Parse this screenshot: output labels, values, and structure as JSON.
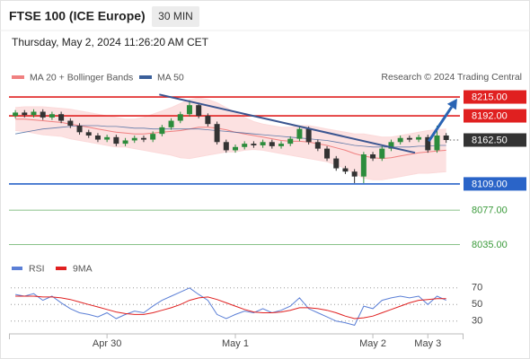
{
  "header": {
    "title": "FTSE 100 (ICE Europe)",
    "interval": "30 MIN",
    "timestamp": "Thursday, May 2, 2024 11:26:20 AM CET"
  },
  "chart_data": [
    {
      "type": "candlestick",
      "source": "Research © 2024 Trading Central",
      "xlim": [
        -0.5,
        48.5
      ],
      "xticks": [
        {
          "value": 10,
          "label": "Apr 30"
        },
        {
          "value": 24,
          "label": "May 1"
        },
        {
          "value": 39,
          "label": "May 2"
        },
        {
          "value": 45,
          "label": "May 3"
        }
      ],
      "ylim": [
        8015,
        8225
      ],
      "up_color": "#2c8c3c",
      "down_color": "#333333",
      "open": [
        8192,
        8196,
        8193,
        8197,
        8190,
        8194,
        8186,
        8180,
        8172,
        8168,
        8163,
        8166,
        8158,
        8162,
        8165,
        8163,
        8170,
        8178,
        8186,
        8194,
        8205,
        8192,
        8182,
        8160,
        8150,
        8154,
        8158,
        8156,
        8160,
        8155,
        8158,
        8164,
        8176,
        8160,
        8152,
        8140,
        8128,
        8124,
        8118,
        8145,
        8140,
        8152,
        8160,
        8165,
        8163,
        8166,
        8150,
        8168
      ],
      "high": [
        8199,
        8199,
        8200,
        8200,
        8197,
        8197,
        8189,
        8183,
        8175,
        8171,
        8169,
        8169,
        8165,
        8168,
        8168,
        8173,
        8181,
        8189,
        8197,
        8211,
        8208,
        8195,
        8185,
        8163,
        8157,
        8161,
        8161,
        8163,
        8163,
        8161,
        8167,
        8180,
        8179,
        8163,
        8155,
        8143,
        8131,
        8127,
        8148,
        8148,
        8155,
        8163,
        8168,
        8168,
        8169,
        8169,
        8180,
        8171
      ],
      "low": [
        8189,
        8190,
        8190,
        8187,
        8187,
        8183,
        8177,
        8169,
        8165,
        8160,
        8160,
        8155,
        8155,
        8159,
        8160,
        8160,
        8167,
        8175,
        8183,
        8191,
        8189,
        8179,
        8157,
        8147,
        8147,
        8151,
        8153,
        8153,
        8152,
        8152,
        8155,
        8161,
        8157,
        8149,
        8137,
        8125,
        8121,
        8110,
        8110,
        8137,
        8137,
        8149,
        8157,
        8160,
        8160,
        8147,
        8147,
        8159
      ],
      "close": [
        8196,
        8193,
        8197,
        8190,
        8194,
        8186,
        8180,
        8172,
        8168,
        8163,
        8166,
        8158,
        8162,
        8165,
        8163,
        8170,
        8178,
        8186,
        8194,
        8205,
        8192,
        8182,
        8160,
        8150,
        8154,
        8158,
        8156,
        8160,
        8155,
        8158,
        8164,
        8176,
        8160,
        8152,
        8140,
        8128,
        8124,
        8118,
        8145,
        8140,
        8152,
        8160,
        8165,
        8163,
        8166,
        8150,
        8168,
        8162.5
      ],
      "series": [
        {
          "name": "MA 20 + Bollinger Bands",
          "color": "#f08080",
          "band_color": "#fbdada",
          "values": [
            8188,
            8188,
            8187,
            8186,
            8185,
            8184,
            8182,
            8180,
            8178,
            8176,
            8174,
            8172,
            8171,
            8170,
            8170,
            8171,
            8172,
            8173,
            8174,
            8176,
            8178,
            8178,
            8177,
            8175,
            8172,
            8170,
            8168,
            8166,
            8164,
            8162,
            8161,
            8161,
            8160,
            8158,
            8156,
            8153,
            8150,
            8146,
            8143,
            8141,
            8140,
            8141,
            8143,
            8145,
            8147,
            8148,
            8149,
            8150
          ],
          "upper": [
            8202,
            8203,
            8203,
            8203,
            8202,
            8201,
            8200,
            8198,
            8196,
            8194,
            8192,
            8190,
            8188,
            8188,
            8190,
            8194,
            8198,
            8202,
            8207,
            8212,
            8214,
            8212,
            8208,
            8202,
            8196,
            8190,
            8185,
            8182,
            8180,
            8178,
            8178,
            8180,
            8180,
            8178,
            8176,
            8174,
            8172,
            8170,
            8170,
            8168,
            8166,
            8166,
            8168,
            8170,
            8172,
            8174,
            8175,
            8176
          ],
          "lower": [
            8174,
            8173,
            8171,
            8169,
            8168,
            8167,
            8164,
            8162,
            8160,
            8158,
            8156,
            8154,
            8154,
            8152,
            8150,
            8148,
            8146,
            8144,
            8141,
            8140,
            8142,
            8144,
            8146,
            8148,
            8148,
            8150,
            8151,
            8150,
            8148,
            8146,
            8144,
            8142,
            8140,
            8138,
            8136,
            8132,
            8128,
            8122,
            8116,
            8114,
            8114,
            8116,
            8118,
            8120,
            8122,
            8122,
            8123,
            8124
          ]
        },
        {
          "name": "MA 50",
          "color": "#3a5f9a",
          "values": [
            8170,
            8172,
            8174,
            8176,
            8177,
            8178,
            8179,
            8180,
            8180,
            8180,
            8179,
            8179,
            8178,
            8177,
            8177,
            8176,
            8176,
            8176,
            8176,
            8176,
            8176,
            8175,
            8174,
            8173,
            8172,
            8171,
            8170,
            8169,
            8168,
            8167,
            8166,
            8165,
            8164,
            8163,
            8162,
            8160,
            8158,
            8156,
            8155,
            8154,
            8154,
            8154,
            8154,
            8154,
            8155,
            8155,
            8156,
            8156
          ]
        }
      ],
      "levels": [
        {
          "price": {
            "value": 8215,
            "label": "8215.00"
          },
          "color": "#e02020",
          "style": "filled"
        },
        {
          "price": {
            "value": 8192,
            "label": "8192.00"
          },
          "color": "#e02020",
          "style": "filled"
        },
        {
          "price": {
            "value": 8109,
            "label": "8109.00"
          },
          "color": "#2a64c8",
          "style": "filled"
        },
        {
          "price": {
            "value": 8077,
            "label": "8077.00"
          },
          "color": "#3a9a3a",
          "style": "text"
        },
        {
          "price": {
            "value": 8035,
            "label": "8035.00"
          },
          "color": "#3a9a3a",
          "style": "text"
        }
      ],
      "current": {
        "value": 8162.5,
        "label": "8162.50",
        "color": "#333333"
      },
      "trendline": {
        "x": [
          15.7,
          43.6
        ],
        "y": [
          8218,
          8147
        ],
        "color": "#3b5590"
      },
      "arrow": {
        "x": [
          45.1,
          48.2
        ],
        "y": [
          8161,
          8213
        ],
        "color": "#2a64b4"
      }
    },
    {
      "type": "line",
      "xlim": [
        -0.5,
        48.5
      ],
      "ylim": [
        20,
        80
      ],
      "yticks": [
        30,
        50,
        70
      ],
      "grid": true,
      "series": [
        {
          "name": "RSI",
          "color": "#5b7fd6",
          "values": [
            62,
            60,
            63,
            55,
            60,
            52,
            45,
            40,
            38,
            35,
            40,
            33,
            38,
            42,
            40,
            48,
            55,
            60,
            65,
            70,
            62,
            55,
            38,
            33,
            38,
            42,
            40,
            45,
            40,
            43,
            48,
            58,
            45,
            40,
            35,
            30,
            28,
            25,
            48,
            45,
            55,
            58,
            60,
            58,
            60,
            50,
            60,
            55
          ]
        },
        {
          "name": "9MA",
          "color": "#e02020",
          "values": [
            60,
            60,
            60,
            59,
            59,
            58,
            56,
            53,
            50,
            47,
            44,
            41,
            39,
            38,
            38,
            40,
            43,
            46,
            50,
            55,
            58,
            59,
            56,
            52,
            48,
            44,
            41,
            40,
            40,
            41,
            43,
            46,
            46,
            45,
            43,
            40,
            36,
            33,
            34,
            36,
            40,
            44,
            48,
            52,
            55,
            56,
            57,
            57
          ]
        }
      ]
    }
  ]
}
